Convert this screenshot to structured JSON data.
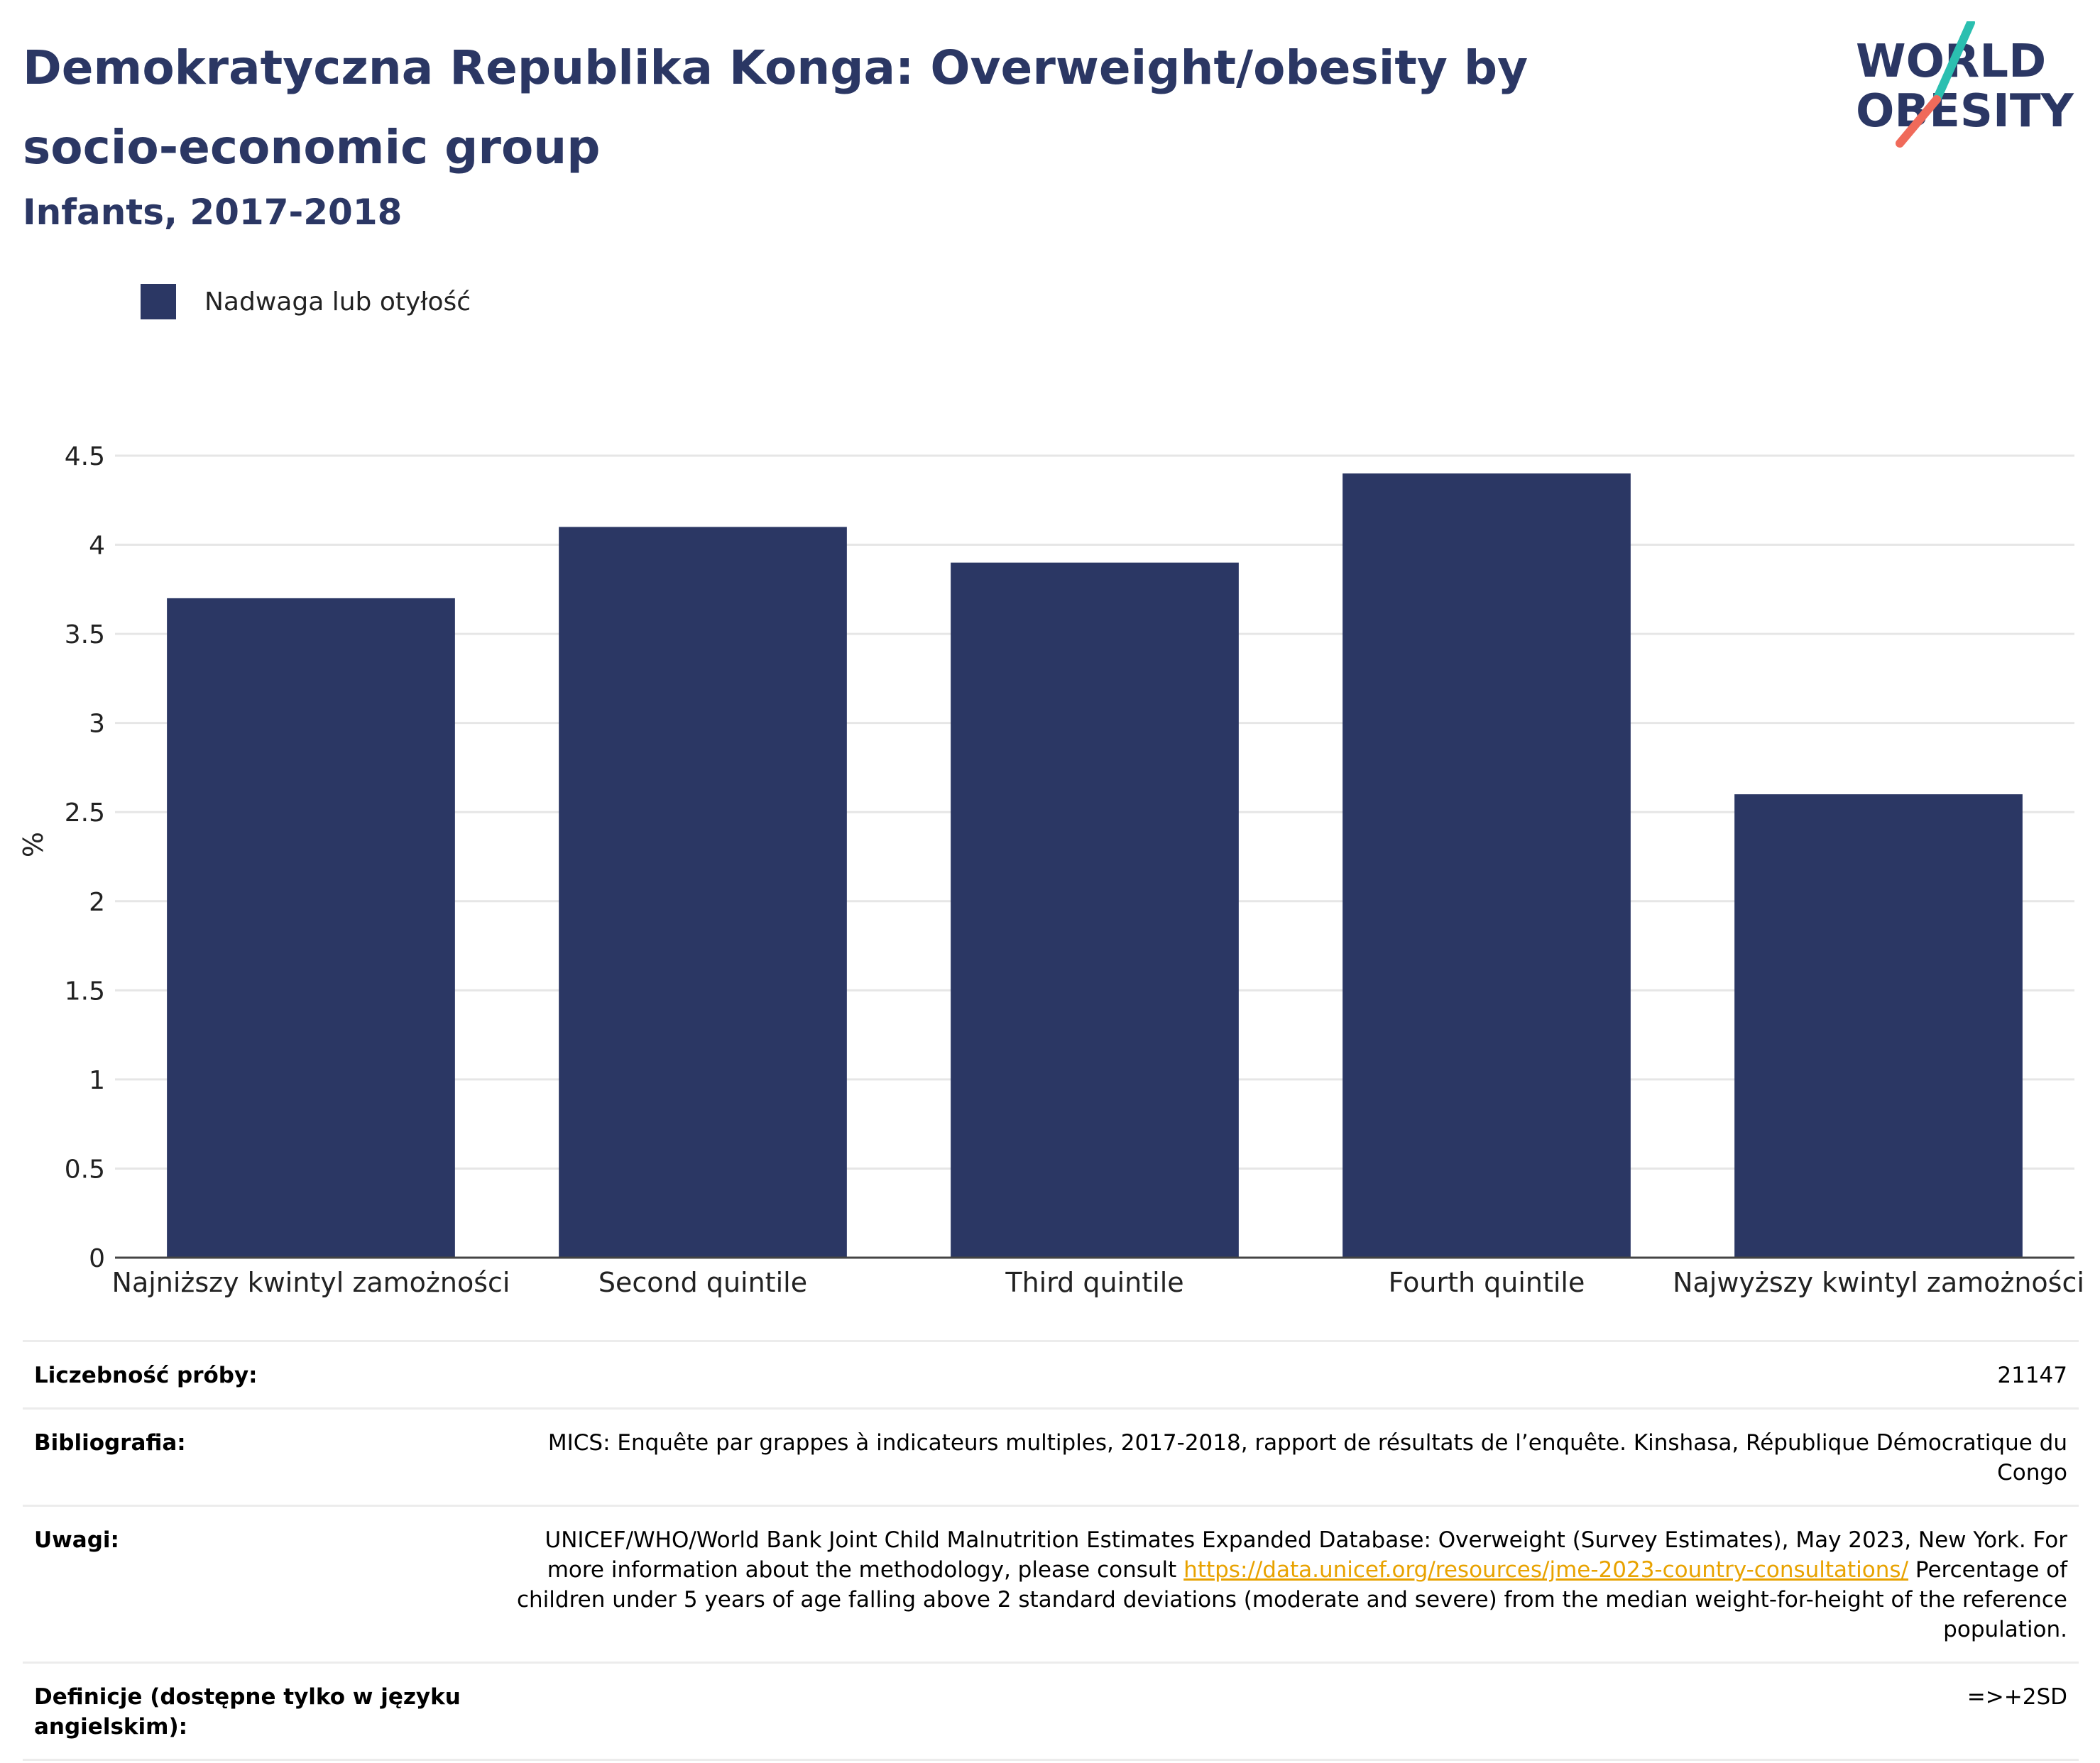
{
  "header": {
    "title": "Demokratyczna Republika Konga: Overweight/obesity by socio-economic group",
    "subtitle": "Infants, 2017-2018"
  },
  "logo": {
    "line1": "WORLD",
    "line2": "OBESITY",
    "colors": {
      "slash_top": "#2bbfb0",
      "slash_bottom": "#f06a5a",
      "text": "#2b3764"
    }
  },
  "legend": {
    "label": "Nadwaga lub otyłość",
    "color": "#2b3764"
  },
  "chart_data": {
    "type": "bar",
    "categories": [
      "Najniższy kwintyl zamożności",
      "Second quintile",
      "Third quintile",
      "Fourth quintile",
      "Najwyższy kwintyl zamożności"
    ],
    "series": [
      {
        "name": "Nadwaga lub otyłość",
        "values": [
          3.7,
          4.1,
          3.9,
          4.4,
          2.6
        ]
      }
    ],
    "ylabel": "%",
    "ylim": [
      0,
      4.5
    ],
    "yticks": [
      "0",
      "0.5",
      "1",
      "1.5",
      "2",
      "2.5",
      "3",
      "3.5",
      "4",
      "4.5"
    ],
    "grid": true,
    "bar_color": "#2b3764"
  },
  "meta": {
    "sample_label": "Liczebność próby:",
    "sample_value": "21147",
    "bib_label": "Bibliografia:",
    "bib_value": "MICS: Enquête par grappes à indicateurs multiples, 2017-2018, rapport de résultats de l’enquête. Kinshasa, République Démocratique du Congo",
    "notes_label": "Uwagi:",
    "notes_text1": "UNICEF/WHO/World Bank Joint Child Malnutrition Estimates Expanded Database: Overweight (Survey Estimates), May 2023, New York. For more information about the methodology, please consult ",
    "notes_link": "https://data.unicef.org/resources/jme-2023-country-consultations/",
    "notes_text2": " Percentage of children under 5 years of age falling above 2 standard deviations (moderate and severe) from the median weight-for-height of the reference population.",
    "def_label": "Definicje (dostępne tylko w języku angielskim):",
    "def_value": "=>+2SD"
  }
}
